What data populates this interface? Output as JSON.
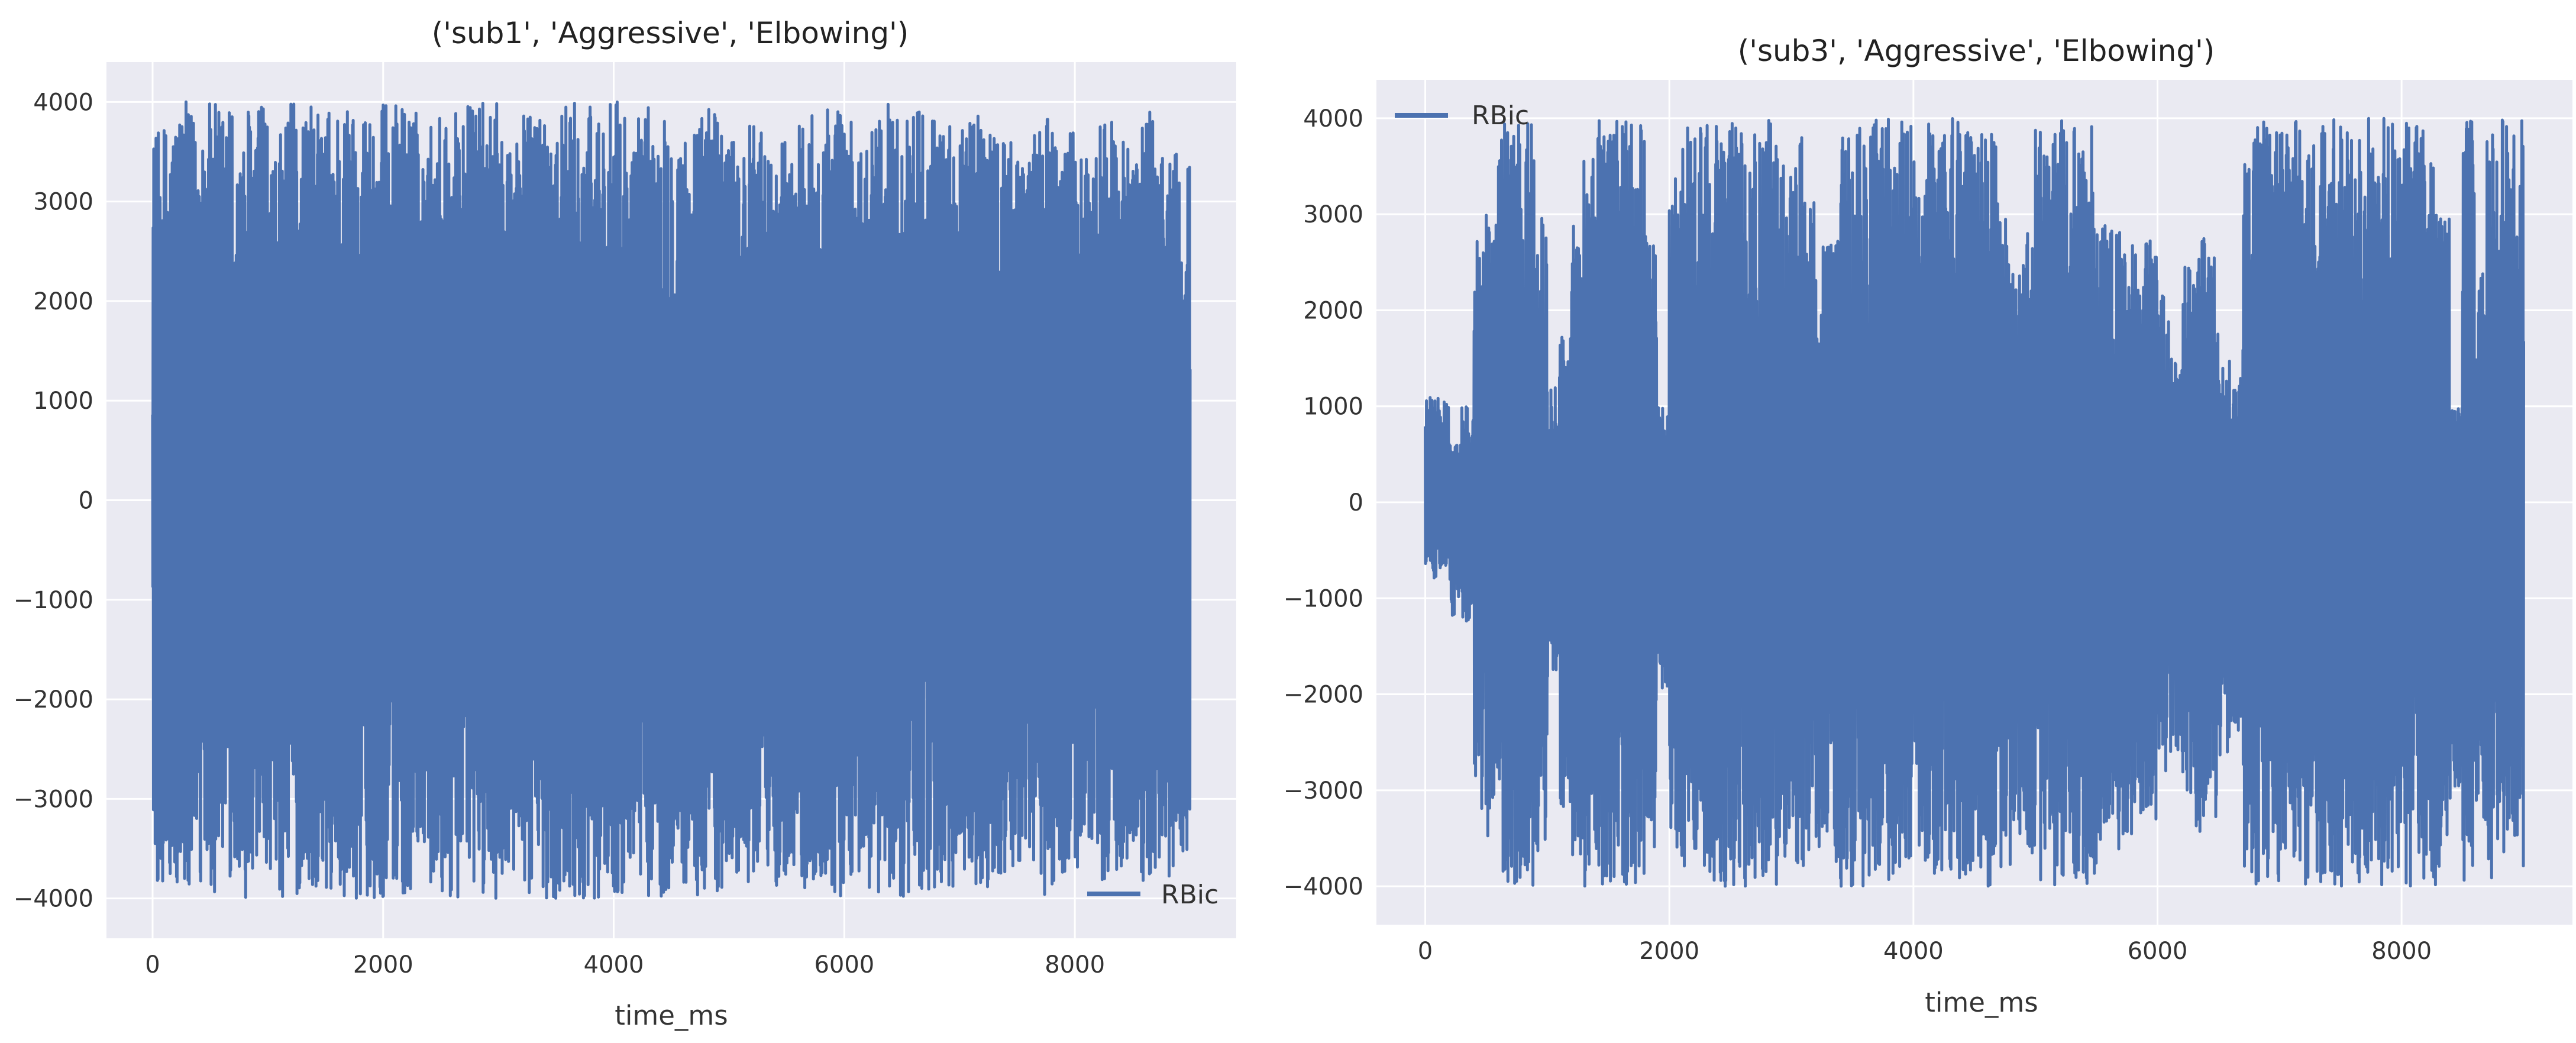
{
  "colors": {
    "series": "#4c72b0",
    "panel_bg": "#eaeaf2",
    "grid": "#ffffff"
  },
  "chart_data": [
    {
      "type": "line",
      "title": "('sub1', 'Aggressive', 'Elbowing')",
      "xlabel": "time_ms",
      "ylabel": "",
      "xlim": [
        -400,
        9400
      ],
      "ylim": [
        -4400,
        4400
      ],
      "xticks": [
        0,
        2000,
        4000,
        6000,
        8000
      ],
      "yticks": [
        -4000,
        -3000,
        -2000,
        -1000,
        0,
        1000,
        2000,
        3000,
        4000
      ],
      "xtick_labels": [
        "0",
        "2000",
        "4000",
        "6000",
        "8000"
      ],
      "ytick_labels": [
        "−4000",
        "−3000",
        "−2000",
        "−1000",
        "0",
        "1000",
        "2000",
        "3000",
        "4000"
      ],
      "grid": true,
      "legend": {
        "location": "lower right",
        "entries": [
          "RBic"
        ]
      },
      "series": [
        {
          "name": "RBic",
          "x_range": [
            0,
            9000
          ],
          "clip": [
            -4000,
            4000
          ],
          "note": "dense EMG-like signal; envelope sampled per 100 ms (min/max)",
          "envelope_step_ms": 100,
          "max": [
            3700,
            3800,
            4000,
            3900,
            4000,
            4000,
            4000,
            3600,
            4000,
            4000,
            3400,
            3800,
            4000,
            4000,
            3900,
            4000,
            4000,
            4000,
            4000,
            4000,
            4000,
            4000,
            4000,
            3500,
            3900,
            4000,
            4000,
            4000,
            4000,
            4000,
            3700,
            3800,
            3900,
            4000,
            4000,
            4000,
            4000,
            4000,
            4000,
            4000,
            4000,
            3600,
            4000,
            4000,
            4000,
            3800,
            3700,
            3900,
            4000,
            4000,
            3600,
            3800,
            3900,
            3500,
            3700,
            3600,
            3800,
            4000,
            4000,
            4000,
            3800,
            3600,
            4000,
            4000,
            4000,
            4000,
            4000,
            4000,
            3700,
            3800,
            3900,
            4000,
            4000,
            3800,
            3600,
            3500,
            3800,
            3900,
            3700,
            3700,
            3600,
            3500,
            3900,
            3800,
            3600,
            4000,
            3900,
            3600,
            3700,
            3400,
            3200
          ],
          "min": [
            -3900,
            -3900,
            -4000,
            -4000,
            -4000,
            -4000,
            -4000,
            -3900,
            -4000,
            -4000,
            -3800,
            -4000,
            -4000,
            -4000,
            -3900,
            -4000,
            -4000,
            -4000,
            -4000,
            -4000,
            -4000,
            -4000,
            -4000,
            -3800,
            -4000,
            -4000,
            -4000,
            -4000,
            -4000,
            -4000,
            -3900,
            -3900,
            -4000,
            -4000,
            -4000,
            -4000,
            -4000,
            -4000,
            -4000,
            -4000,
            -4000,
            -3700,
            -4000,
            -4000,
            -4000,
            -3900,
            -3900,
            -4000,
            -4000,
            -4000,
            -3800,
            -3900,
            -4000,
            -3800,
            -3900,
            -3700,
            -3900,
            -4000,
            -4000,
            -4000,
            -3900,
            -3800,
            -4000,
            -4000,
            -4000,
            -4000,
            -4000,
            -4000,
            -3900,
            -3900,
            -4000,
            -4000,
            -4000,
            -3900,
            -3800,
            -3700,
            -3900,
            -4000,
            -3900,
            -3800,
            -3700,
            -3600,
            -3900,
            -3900,
            -3700,
            -4000,
            -3900,
            -3700,
            -3800,
            -3600,
            -4000
          ]
        }
      ]
    },
    {
      "type": "line",
      "title": "('sub3', 'Aggressive', 'Elbowing')",
      "xlabel": "time_ms",
      "ylabel": "",
      "xlim": [
        -400,
        9400
      ],
      "ylim": [
        -4400,
        4400
      ],
      "xticks": [
        0,
        2000,
        4000,
        6000,
        8000
      ],
      "yticks": [
        -4000,
        -3000,
        -2000,
        -1000,
        0,
        1000,
        2000,
        3000,
        4000
      ],
      "xtick_labels": [
        "0",
        "2000",
        "4000",
        "6000",
        "8000"
      ],
      "ytick_labels": [
        "−4000",
        "−3000",
        "−2000",
        "−1000",
        "0",
        "1000",
        "2000",
        "3000",
        "4000"
      ],
      "grid": true,
      "legend": {
        "location": "upper left",
        "entries": [
          "RBic"
        ]
      },
      "series": [
        {
          "name": "RBic",
          "x_range": [
            0,
            9000
          ],
          "clip": [
            -4000,
            4000
          ],
          "note": "bursty signal; envelope sampled per 100 ms (min/max)",
          "envelope_step_ms": 100,
          "max": [
            1100,
            1100,
            600,
            1000,
            2800,
            3000,
            4000,
            4000,
            4000,
            3000,
            1200,
            1800,
            2900,
            3600,
            4000,
            4000,
            4000,
            4000,
            3100,
            1000,
            3400,
            4000,
            4000,
            4000,
            4000,
            4000,
            4000,
            4000,
            4000,
            3600,
            3800,
            3400,
            2700,
            2900,
            3900,
            4000,
            4000,
            4000,
            4000,
            4000,
            3600,
            4000,
            4000,
            4000,
            4000,
            4000,
            4000,
            3100,
            2500,
            2800,
            4000,
            4000,
            4000,
            4000,
            4000,
            3000,
            3000,
            2700,
            2600,
            2800,
            2300,
            1600,
            2500,
            2800,
            2700,
            1500,
            1300,
            3800,
            4000,
            4000,
            4000,
            4000,
            4000,
            4000,
            4000,
            4000,
            4000,
            4000,
            4000,
            4000,
            4000,
            4000,
            3600,
            3000,
            1000,
            4000,
            2400,
            4000,
            4000,
            4000,
            4000
          ],
          "min": [
            -800,
            -700,
            -1200,
            -1300,
            -3200,
            -3500,
            -4000,
            -4000,
            -4000,
            -3700,
            -1900,
            -3200,
            -3800,
            -4000,
            -4000,
            -4000,
            -4000,
            -4000,
            -3700,
            -2000,
            -3800,
            -4000,
            -4000,
            -4000,
            -4000,
            -4000,
            -4000,
            -4000,
            -4000,
            -3900,
            -3900,
            -3800,
            -3700,
            -3900,
            -4000,
            -4000,
            -4000,
            -4000,
            -4000,
            -4000,
            -3900,
            -4000,
            -4000,
            -4000,
            -4000,
            -4000,
            -4000,
            -3800,
            -3600,
            -3700,
            -4000,
            -4000,
            -4000,
            -4000,
            -4000,
            -3800,
            -3700,
            -3500,
            -3400,
            -3300,
            -3000,
            -2600,
            -3200,
            -3500,
            -3300,
            -2700,
            -2400,
            -3900,
            -4000,
            -4000,
            -4000,
            -4000,
            -4000,
            -4000,
            -4000,
            -4000,
            -4000,
            -4000,
            -4000,
            -4000,
            -4000,
            -4000,
            -4000,
            -3900,
            -3000,
            -4000,
            -3500,
            -4000,
            -4000,
            -4000,
            -4000
          ]
        }
      ]
    }
  ]
}
